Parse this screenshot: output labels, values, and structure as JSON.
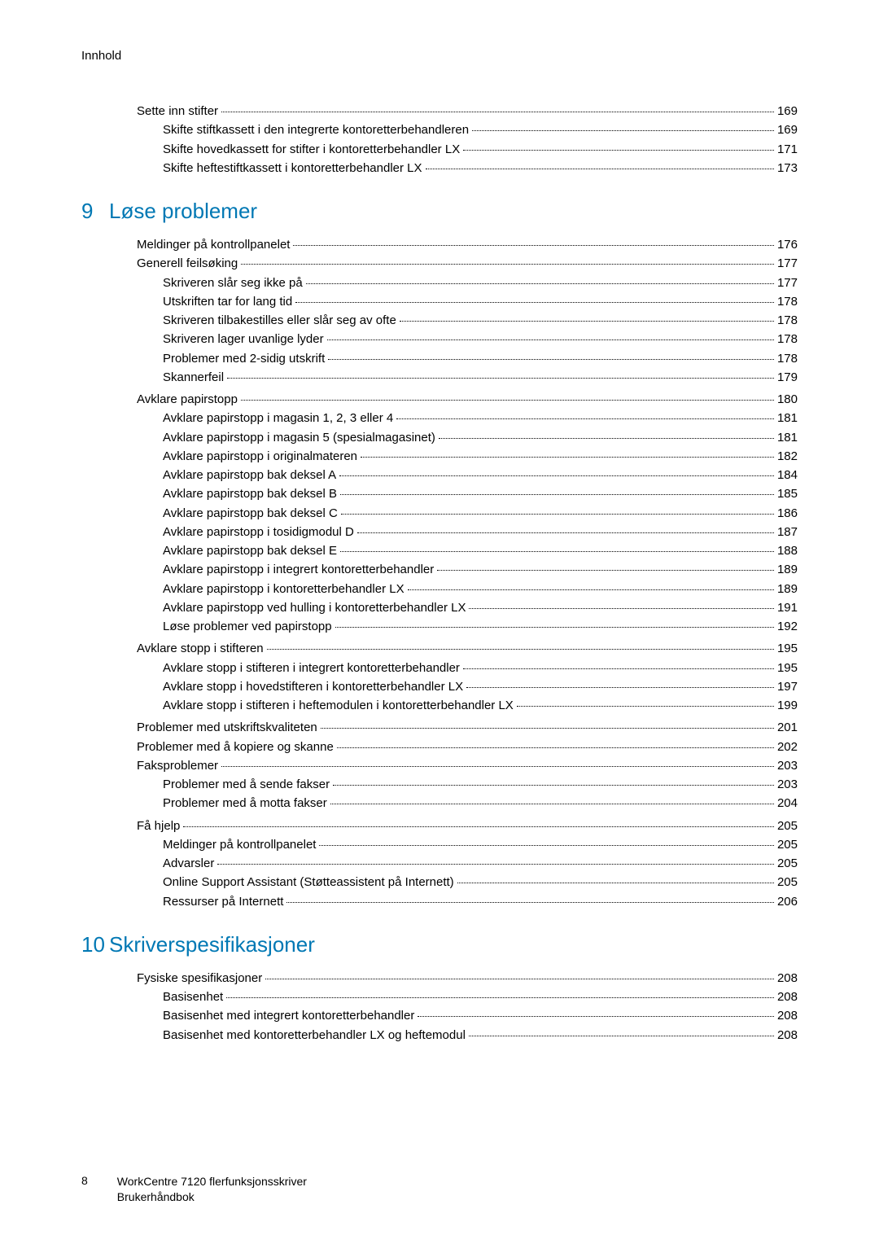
{
  "header": "Innhold",
  "sections": [
    {
      "chapter": null,
      "items": [
        {
          "level": 2,
          "title": "Sette inn stifter",
          "page": "169"
        },
        {
          "level": 3,
          "title": "Skifte stiftkassett i den integrerte kontoretterbehandleren",
          "page": "169"
        },
        {
          "level": 3,
          "title": "Skifte hovedkassett for stifter i kontoretterbehandler LX",
          "page": "171"
        },
        {
          "level": 3,
          "title": "Skifte heftestiftkassett i kontoretterbehandler LX",
          "page": "173"
        }
      ]
    },
    {
      "chapter": {
        "num": "9",
        "title": "Løse problemer"
      },
      "items": [
        {
          "level": 2,
          "title": "Meldinger på kontrollpanelet",
          "page": "176"
        },
        {
          "level": 2,
          "title": "Generell feilsøking",
          "page": "177"
        },
        {
          "level": 3,
          "title": "Skriveren slår seg ikke på",
          "page": "177"
        },
        {
          "level": 3,
          "title": "Utskriften tar for lang tid",
          "page": "178"
        },
        {
          "level": 3,
          "title": "Skriveren tilbakestilles eller slår seg av ofte",
          "page": "178"
        },
        {
          "level": 3,
          "title": "Skriveren lager uvanlige lyder",
          "page": "178"
        },
        {
          "level": 3,
          "title": "Problemer med 2-sidig utskrift",
          "page": "178"
        },
        {
          "level": 3,
          "title": "Skannerfeil",
          "page": "179"
        },
        {
          "level": 2,
          "title": "Avklare papirstopp",
          "page": "180"
        },
        {
          "level": 3,
          "title": "Avklare papirstopp i magasin 1, 2, 3 eller 4",
          "page": "181"
        },
        {
          "level": 3,
          "title": "Avklare papirstopp i magasin 5 (spesialmagasinet)",
          "page": "181"
        },
        {
          "level": 3,
          "title": "Avklare papirstopp i originalmateren",
          "page": "182"
        },
        {
          "level": 3,
          "title": "Avklare papirstopp bak deksel A",
          "page": "184"
        },
        {
          "level": 3,
          "title": "Avklare papirstopp bak deksel B",
          "page": "185"
        },
        {
          "level": 3,
          "title": "Avklare papirstopp bak deksel C",
          "page": "186"
        },
        {
          "level": 3,
          "title": "Avklare papirstopp i tosidigmodul D",
          "page": "187"
        },
        {
          "level": 3,
          "title": "Avklare papirstopp bak deksel E",
          "page": "188"
        },
        {
          "level": 3,
          "title": "Avklare papirstopp i integrert kontoretterbehandler",
          "page": "189"
        },
        {
          "level": 3,
          "title": "Avklare papirstopp i kontoretterbehandler LX",
          "page": "189"
        },
        {
          "level": 3,
          "title": "Avklare papirstopp ved hulling i kontoretterbehandler LX",
          "page": "191"
        },
        {
          "level": 3,
          "title": "Løse problemer ved papirstopp",
          "page": "192"
        },
        {
          "level": 2,
          "title": "Avklare stopp i stifteren",
          "page": "195"
        },
        {
          "level": 3,
          "title": "Avklare stopp i stifteren i integrert kontoretterbehandler",
          "page": "195"
        },
        {
          "level": 3,
          "title": "Avklare stopp i hovedstifteren i kontoretterbehandler LX",
          "page": "197"
        },
        {
          "level": 3,
          "title": "Avklare stopp i stifteren i heftemodulen i kontoretterbehandler LX",
          "page": "199"
        },
        {
          "level": 2,
          "title": "Problemer med utskriftskvaliteten",
          "page": "201"
        },
        {
          "level": 2,
          "title": "Problemer med å kopiere og skanne",
          "page": "202"
        },
        {
          "level": 2,
          "title": "Faksproblemer",
          "page": "203"
        },
        {
          "level": 3,
          "title": "Problemer med å sende fakser",
          "page": "203"
        },
        {
          "level": 3,
          "title": "Problemer med å motta fakser",
          "page": "204"
        },
        {
          "level": 2,
          "title": "Få hjelp",
          "page": "205"
        },
        {
          "level": 3,
          "title": "Meldinger på kontrollpanelet",
          "page": "205"
        },
        {
          "level": 3,
          "title": "Advarsler",
          "page": "205"
        },
        {
          "level": 3,
          "title": "Online Support Assistant (Støtteassistent på Internett)",
          "page": "205"
        },
        {
          "level": 3,
          "title": "Ressurser på Internett",
          "page": "206"
        }
      ]
    },
    {
      "chapter": {
        "num": "10",
        "title": "Skriverspesifikasjoner"
      },
      "items": [
        {
          "level": 2,
          "title": "Fysiske spesifikasjoner",
          "page": "208"
        },
        {
          "level": 3,
          "title": "Basisenhet",
          "page": "208"
        },
        {
          "level": 3,
          "title": "Basisenhet med integrert kontoretterbehandler",
          "page": "208"
        },
        {
          "level": 3,
          "title": "Basisenhet med kontoretterbehandler LX og heftemodul",
          "page": "208"
        }
      ]
    }
  ],
  "footer": {
    "pageNumber": "8",
    "line1": "WorkCentre 7120 flerfunksjonsskriver",
    "line2": "Brukerhåndbok"
  },
  "styling": {
    "textColor": "#000000",
    "chapterColor": "#0078b4",
    "backgroundColor": "#ffffff",
    "bodyFontSize": 15,
    "chapterFontSize": 26,
    "indentStep": 34
  }
}
